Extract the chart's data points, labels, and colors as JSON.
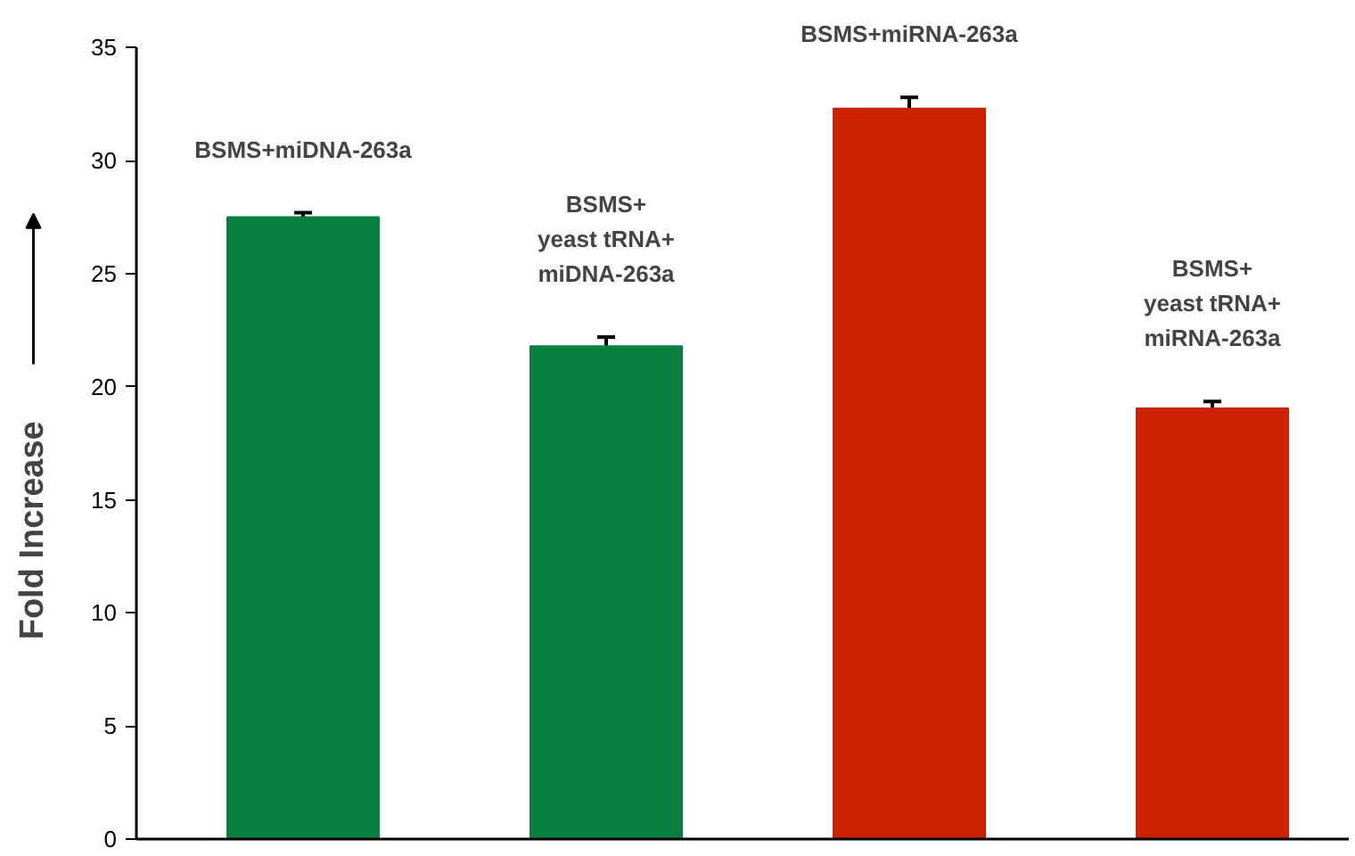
{
  "chart_data": {
    "type": "bar",
    "ylabel": "Fold Increase",
    "categories": [
      null,
      null,
      null,
      null
    ],
    "values": [
      27.5,
      21.8,
      32.3,
      19.05
    ],
    "colors": [
      "#0a8040",
      "#0a8040",
      "#cc2200",
      "#cc2200"
    ],
    "errors": [
      0.2,
      0.4,
      0.5,
      0.3
    ],
    "annotations": [
      "BSMS+miDNA-263a",
      "BSMS+\nyeast tRNA+\nmiDNA-263a",
      "BSMS+miRNA-263a",
      "BSMS+\nyeast tRNA+\nmiRNA-263a"
    ],
    "ylim": [
      0,
      35
    ],
    "yticks": [
      0,
      5,
      10,
      15,
      20,
      25,
      30,
      35
    ],
    "grid": false
  }
}
